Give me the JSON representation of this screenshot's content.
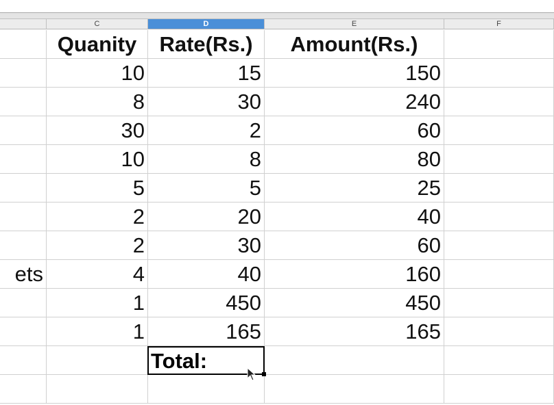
{
  "columns": [
    {
      "label": ""
    },
    {
      "label": "C"
    },
    {
      "label": "D",
      "selected": true
    },
    {
      "label": "E"
    },
    {
      "label": "F"
    }
  ],
  "header": {
    "quantity": "Quanity",
    "rate": "Rate(Rs.)",
    "amount": "Amount(Rs.)"
  },
  "rows": [
    {
      "b": "",
      "qty": "10",
      "rate": "15",
      "amount": "150"
    },
    {
      "b": "",
      "qty": "8",
      "rate": "30",
      "amount": "240"
    },
    {
      "b": "",
      "qty": "30",
      "rate": "2",
      "amount": "60"
    },
    {
      "b": "",
      "qty": "10",
      "rate": "8",
      "amount": "80"
    },
    {
      "b": "",
      "qty": "5",
      "rate": "5",
      "amount": "25"
    },
    {
      "b": "",
      "qty": "2",
      "rate": "20",
      "amount": "40"
    },
    {
      "b": "",
      "qty": "2",
      "rate": "30",
      "amount": "60"
    },
    {
      "b": "ets",
      "qty": "4",
      "rate": "40",
      "amount": "160"
    },
    {
      "b": "",
      "qty": "1",
      "rate": "450",
      "amount": "450"
    },
    {
      "b": "",
      "qty": "1",
      "rate": "165",
      "amount": "165"
    }
  ],
  "total_label": "Total:",
  "colors": {
    "selected_header": "#4a8fd8",
    "grid": "#d0d0d0"
  }
}
